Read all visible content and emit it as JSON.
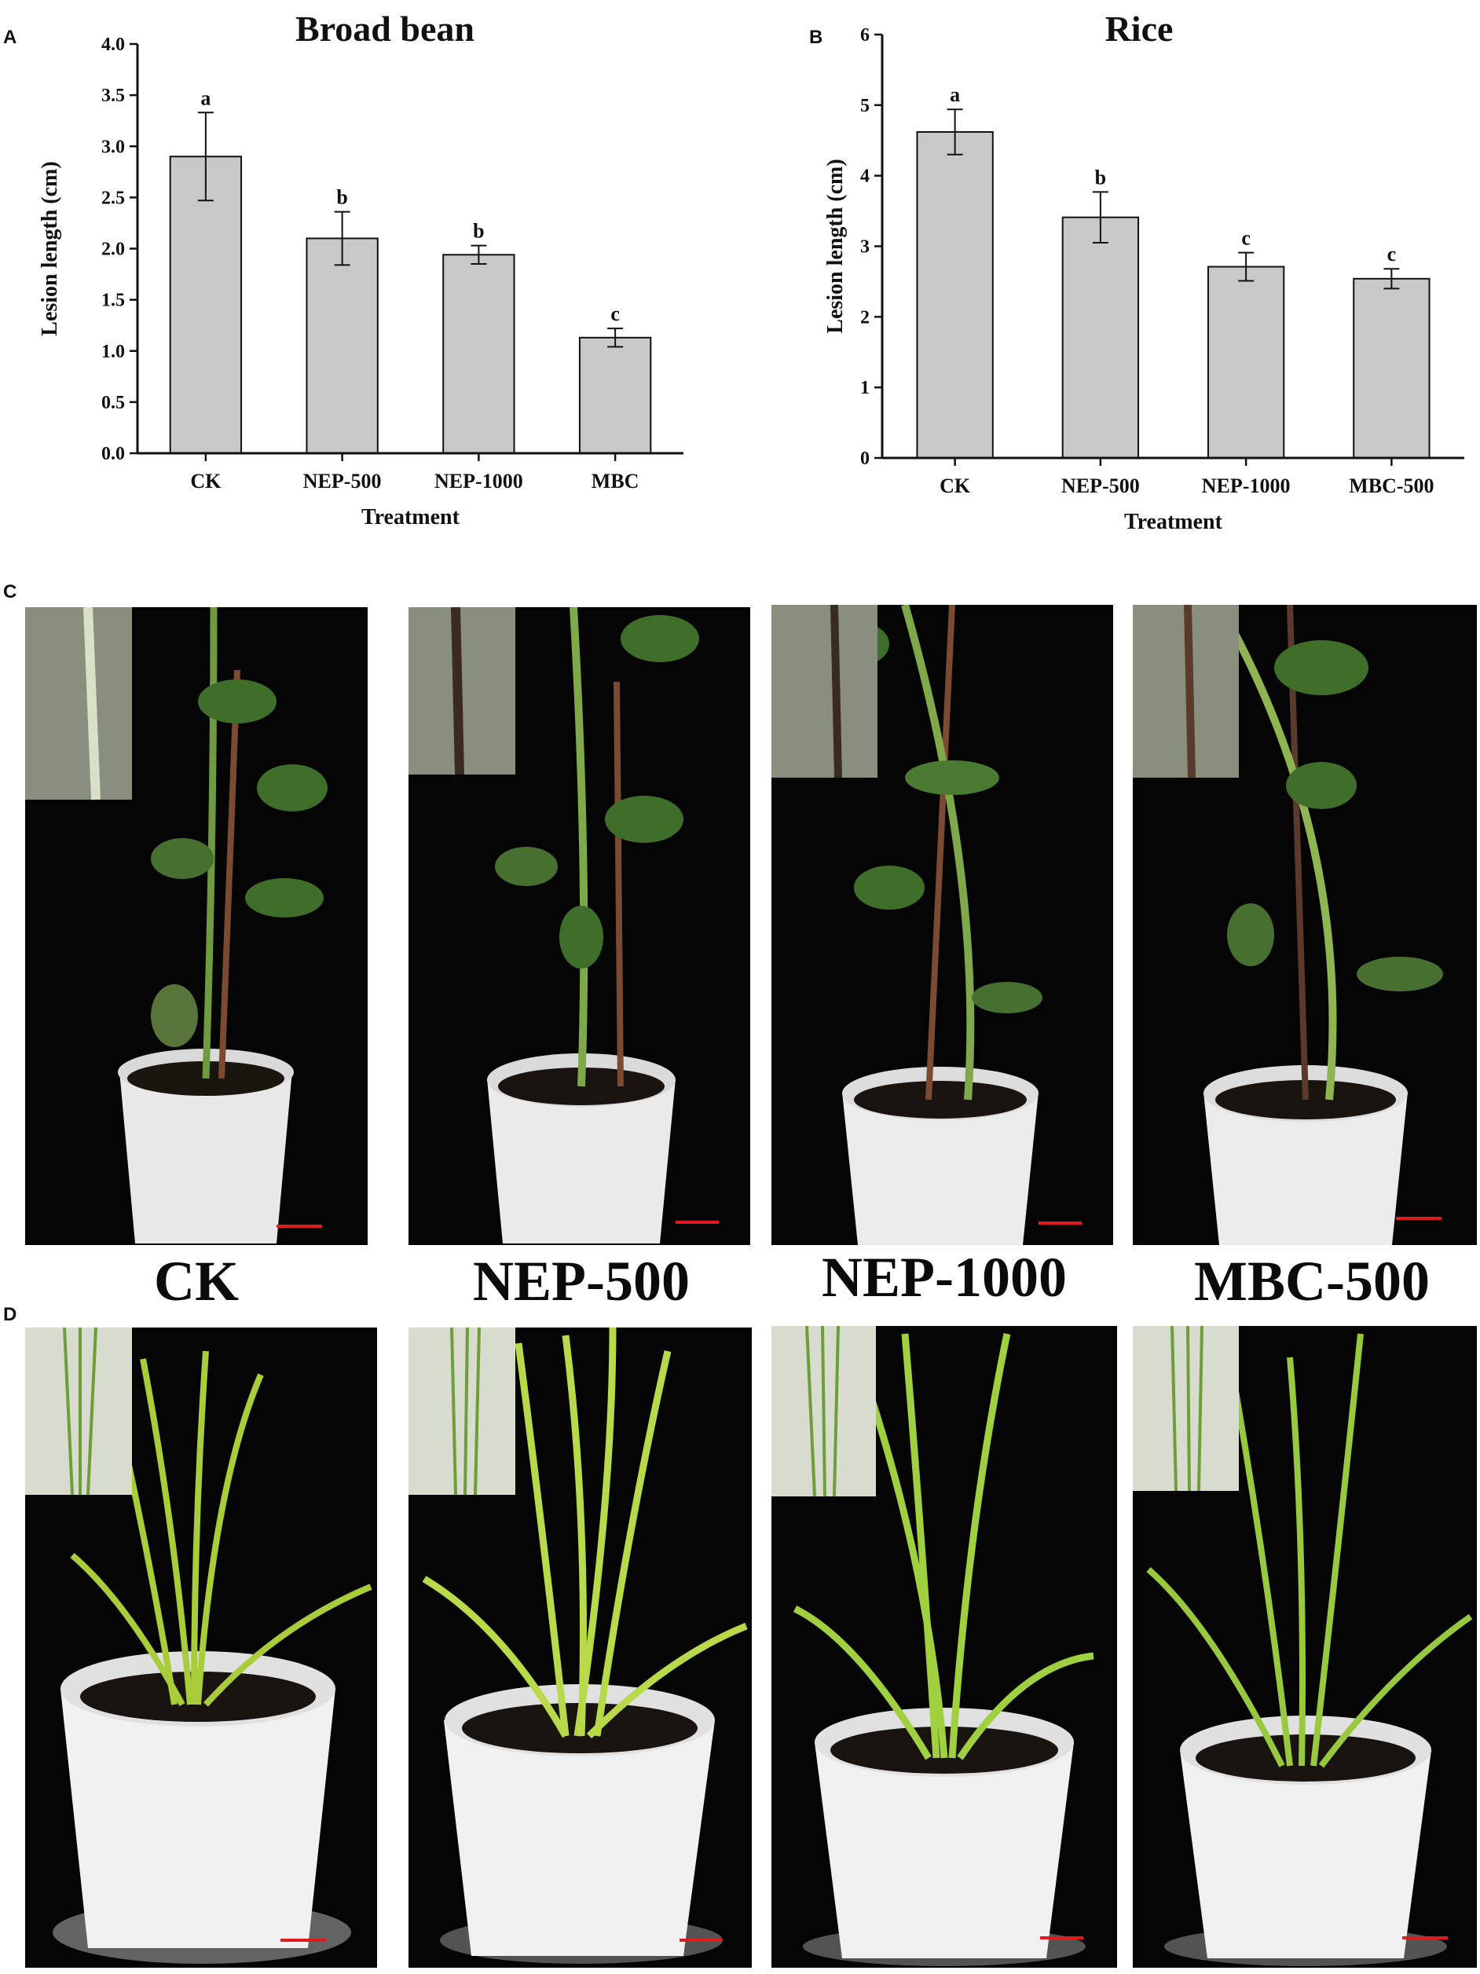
{
  "panels": {
    "a": "A",
    "b": "B",
    "c": "C",
    "d": "D"
  },
  "chart_data": [
    {
      "type": "bar",
      "title": "Broad bean",
      "xlabel": "Treatment",
      "ylabel": "Lesion length (cm)",
      "categories": [
        "CK",
        "NEP-500",
        "NEP-1000",
        "MBC"
      ],
      "values": [
        2.9,
        2.1,
        1.94,
        1.13
      ],
      "errors": [
        0.43,
        0.26,
        0.09,
        0.09
      ],
      "significance": [
        "a",
        "b",
        "b",
        "c"
      ],
      "ylim": [
        0,
        4.0
      ],
      "yticks": [
        "0.0",
        "0.5",
        "1.0",
        "1.5",
        "2.0",
        "2.5",
        "3.0",
        "3.5",
        "4.0"
      ],
      "bar_color": "#c8c8c8"
    },
    {
      "type": "bar",
      "title": "Rice",
      "xlabel": "Treatment",
      "ylabel": "Lesion length (cm)",
      "categories": [
        "CK",
        "NEP-500",
        "NEP-1000",
        "MBC-500"
      ],
      "values": [
        4.62,
        3.41,
        2.71,
        2.54
      ],
      "errors": [
        0.32,
        0.36,
        0.2,
        0.14
      ],
      "significance": [
        "a",
        "b",
        "c",
        "c"
      ],
      "ylim": [
        0,
        6
      ],
      "yticks": [
        "0",
        "1",
        "2",
        "3",
        "4",
        "5",
        "6"
      ],
      "bar_color": "#c8c8c8"
    }
  ],
  "photo_captions": [
    "CK",
    "NEP-500",
    "NEP-1000",
    "MBC-500"
  ],
  "colors": {
    "scale_bar": "#e01b1b",
    "leaf": "#3f6e2b",
    "rice_leaf": "#8fc23a",
    "pot": "#e6e6e6",
    "background": "#050505"
  }
}
